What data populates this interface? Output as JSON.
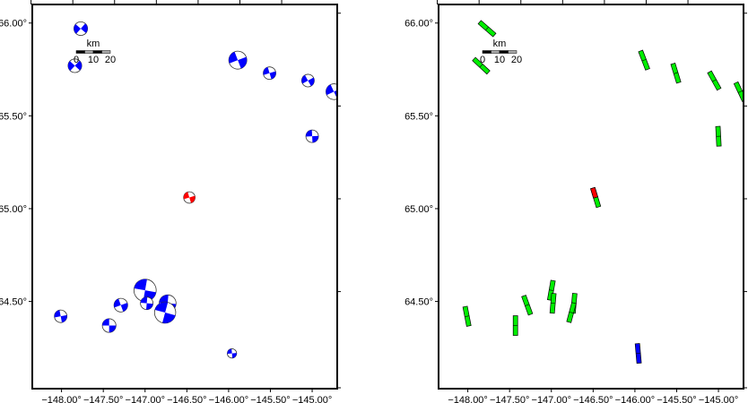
{
  "panels": [
    {
      "name": "focal-mechanisms",
      "symbol": "beachball"
    },
    {
      "name": "strike-bars",
      "symbol": "bar"
    }
  ],
  "axes": {
    "x_ticks": [
      -148.0,
      -147.5,
      -147.0,
      -146.5,
      -146.0,
      -145.5,
      -145.0
    ],
    "x_labels": [
      "−148.00°",
      "−147.50°",
      "−147.00°",
      "−146.50°",
      "−146.00°",
      "−145.50°",
      "−145.00°"
    ],
    "y_ticks": [
      66.0,
      65.5,
      65.0,
      64.5
    ],
    "y_labels": [
      "66.00°",
      "65.50°",
      "65.00°",
      "64.50°"
    ],
    "lon_range": [
      -148.35,
      -144.7
    ],
    "lat_range": [
      64.03,
      66.1
    ]
  },
  "scale_bar": {
    "unit": "km",
    "labels": [
      "0",
      "10",
      "20"
    ]
  },
  "colors": {
    "default": "#0000ff",
    "highlight": "#ff0000",
    "bar_default": "#00ee00",
    "bar_special": "#0000ff"
  },
  "events": [
    {
      "lon": -147.77,
      "lat": 65.97,
      "mag": 3.6,
      "strike": 131,
      "type": "default"
    },
    {
      "lon": -147.84,
      "lat": 65.77,
      "mag": 3.6,
      "strike": 133,
      "type": "default"
    },
    {
      "lon": -145.89,
      "lat": 65.8,
      "mag": 4.0,
      "strike": 159,
      "type": "default"
    },
    {
      "lon": -145.51,
      "lat": 65.73,
      "mag": 3.5,
      "strike": 163,
      "type": "default"
    },
    {
      "lon": -145.05,
      "lat": 65.69,
      "mag": 3.5,
      "strike": 151,
      "type": "default"
    },
    {
      "lon": -144.74,
      "lat": 65.63,
      "mag": 3.8,
      "strike": 155,
      "type": "default"
    },
    {
      "lon": -145.0,
      "lat": 65.39,
      "mag": 3.5,
      "strike": 177,
      "type": "default"
    },
    {
      "lon": -146.47,
      "lat": 65.06,
      "mag": 3.4,
      "strike": 163,
      "type": "highlight"
    },
    {
      "lon": -148.01,
      "lat": 64.42,
      "mag": 3.5,
      "strike": 169,
      "type": "default"
    },
    {
      "lon": -147.43,
      "lat": 64.37,
      "mag": 3.6,
      "strike": 180,
      "type": "default"
    },
    {
      "lon": -147.29,
      "lat": 64.48,
      "mag": 3.6,
      "strike": 160,
      "type": "default"
    },
    {
      "lon": -147.0,
      "lat": 64.56,
      "mag": 4.4,
      "strike": 10,
      "type": "default"
    },
    {
      "lon": -146.98,
      "lat": 64.49,
      "mag": 3.5,
      "strike": 5,
      "type": "default"
    },
    {
      "lon": -146.73,
      "lat": 64.49,
      "mag": 3.9,
      "strike": 5,
      "type": "default"
    },
    {
      "lon": -146.76,
      "lat": 64.44,
      "mag": 4.3,
      "strike": 15,
      "type": "default"
    },
    {
      "lon": -145.96,
      "lat": 64.22,
      "mag": 3.2,
      "strike": 175,
      "type": "special"
    }
  ]
}
